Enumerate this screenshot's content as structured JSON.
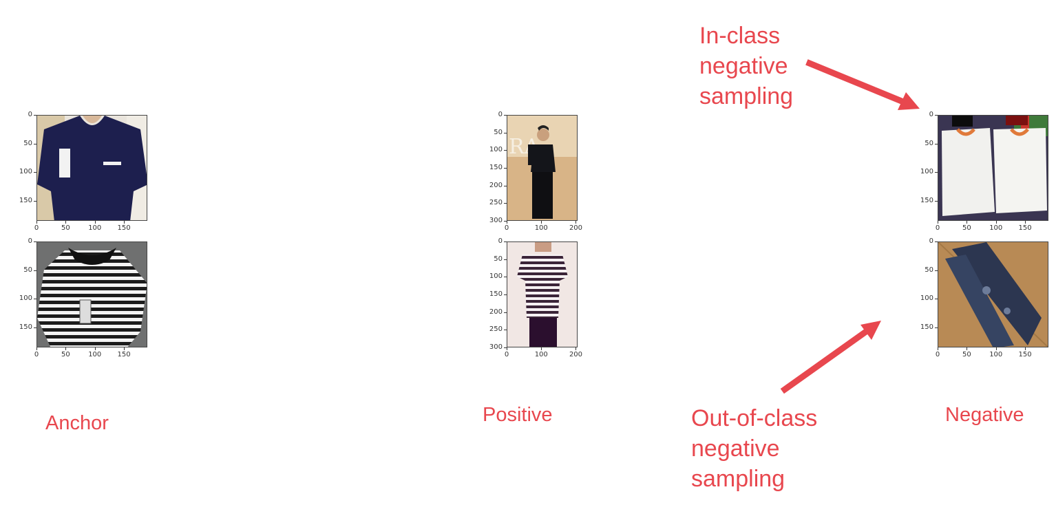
{
  "panels": {
    "anchor": {
      "label": "Anchor",
      "images": [
        {
          "name": "navy polo shirt with white tag",
          "x_ticks": [
            "0",
            "50",
            "100",
            "150"
          ],
          "y_ticks": [
            "0",
            "50",
            "100",
            "150"
          ]
        },
        {
          "name": "black and white striped polo shirt",
          "x_ticks": [
            "0",
            "50",
            "100",
            "150"
          ],
          "y_ticks": [
            "0",
            "50",
            "100",
            "150"
          ]
        }
      ]
    },
    "positive": {
      "label": "Positive",
      "images": [
        {
          "name": "man wearing dark polo shirt",
          "x_ticks": [
            "0",
            "100",
            "200"
          ],
          "y_ticks": [
            "0",
            "50",
            "100",
            "150",
            "200",
            "250",
            "300"
          ]
        },
        {
          "name": "man wearing striped polo shirt",
          "x_ticks": [
            "0",
            "100",
            "200"
          ],
          "y_ticks": [
            "0",
            "50",
            "100",
            "150",
            "200",
            "250",
            "300"
          ]
        }
      ]
    },
    "negative": {
      "label": "Negative",
      "images": [
        {
          "name": "white polo shirts laid flat",
          "x_ticks": [
            "0",
            "50",
            "100",
            "150"
          ],
          "y_ticks": [
            "0",
            "50",
            "100",
            "150"
          ]
        },
        {
          "name": "ripped blue jeans",
          "x_ticks": [
            "0",
            "50",
            "100",
            "150"
          ],
          "y_ticks": [
            "0",
            "50",
            "100",
            "150"
          ]
        }
      ]
    }
  },
  "annotations": {
    "in_class": [
      "In-class",
      "negative",
      "sampling"
    ],
    "out_of_class": [
      "Out-of-class",
      "negative",
      "sampling"
    ]
  },
  "colors": {
    "accent": "#e8474e"
  }
}
